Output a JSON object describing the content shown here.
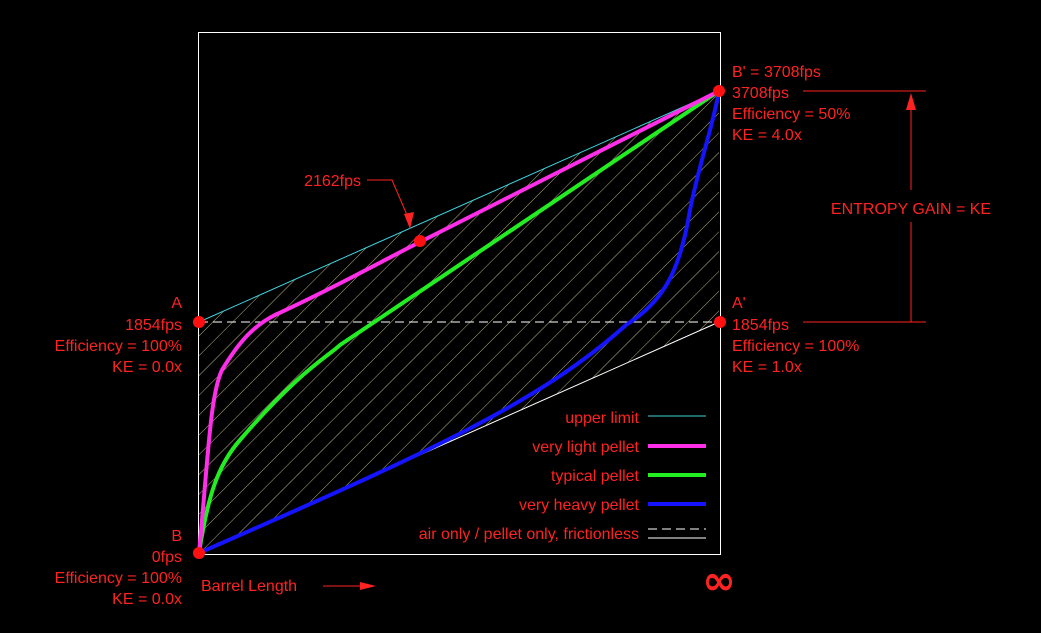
{
  "colors": {
    "background": "#000000",
    "frame": "#ffffff",
    "label": "#ff2222",
    "upper_limit": "#3fd3e0",
    "very_light_pellet": "#ff2ee8",
    "typical_pellet": "#22ee22",
    "very_heavy_pellet": "#1414ff",
    "hatch": "#e6e0a8",
    "marker": "#ff1010"
  },
  "points": {
    "A": {
      "name": "A",
      "velocity": "1854fps",
      "efficiency": "Efficiency = 100%",
      "ke": "KE = 0.0x"
    },
    "B": {
      "name": "B",
      "velocity": "0fps",
      "efficiency": "Efficiency = 100%",
      "ke": "KE = 0.0x"
    },
    "A_prime": {
      "name": "A'",
      "velocity": "1854fps",
      "efficiency": "Efficiency = 100%",
      "ke": "KE = 1.0x"
    },
    "B_prime": {
      "name": "B' = 3708fps",
      "velocity": "3708fps",
      "efficiency": "Efficiency = 50%",
      "ke": "KE = 4.0x"
    }
  },
  "callout": "2162fps",
  "entropy_label": "ENTROPY GAIN = KE",
  "x_axis_label": "Barrel Length",
  "infinity": "∞",
  "legend": [
    {
      "label": "upper limit",
      "style": "thin",
      "color_key": "upper_limit"
    },
    {
      "label": "very light pellet",
      "style": "thick",
      "color_key": "very_light_pellet"
    },
    {
      "label": "typical pellet",
      "style": "thick",
      "color_key": "typical_pellet"
    },
    {
      "label": "very heavy pellet",
      "style": "thick",
      "color_key": "very_heavy_pellet"
    },
    {
      "label": "air only / pellet only, frictionless",
      "style": "dashed",
      "color_key": "frame"
    }
  ]
}
